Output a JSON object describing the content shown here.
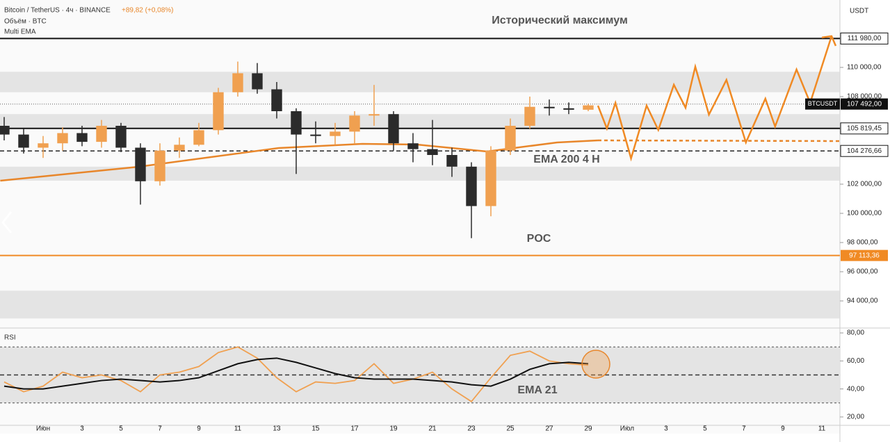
{
  "chart_data": {
    "type": "candlestick",
    "title": "Bitcoin / TetherUS · 4ч · BINANCE",
    "change": "+89,82 (+0,08%)",
    "indicators": [
      "Объём · BTC",
      "Multi EMA"
    ],
    "currency": "USDT",
    "symbol": "BTCUSDT",
    "up_color": "#f0a050",
    "down_color": "#2b2b2b",
    "xlim": [
      -2.214,
      40.93
    ],
    "xticks": [
      {
        "value": 0,
        "label": "Июн"
      },
      {
        "value": 2,
        "label": "3"
      },
      {
        "value": 4,
        "label": "5"
      },
      {
        "value": 6,
        "label": "7"
      },
      {
        "value": 8,
        "label": "9"
      },
      {
        "value": 10,
        "label": "11"
      },
      {
        "value": 12,
        "label": "13"
      },
      {
        "value": 14,
        "label": "15"
      },
      {
        "value": 16,
        "label": "17"
      },
      {
        "value": 18,
        "label": "19"
      },
      {
        "value": 20,
        "label": "21"
      },
      {
        "value": 22,
        "label": "23"
      },
      {
        "value": 24,
        "label": "25"
      },
      {
        "value": 26,
        "label": "27"
      },
      {
        "value": 28,
        "label": "29"
      },
      {
        "value": 30,
        "label": "Июл"
      },
      {
        "value": 32,
        "label": "3"
      },
      {
        "value": 34,
        "label": "5"
      },
      {
        "value": 36,
        "label": "7"
      },
      {
        "value": 38,
        "label": "9"
      },
      {
        "value": 40,
        "label": "11"
      }
    ],
    "ylim": [
      92238,
      114619
    ],
    "yticks": [
      {
        "value": 110000,
        "label": "110 000,00"
      },
      {
        "value": 108000,
        "label": "108 000,00"
      },
      {
        "value": 102000,
        "label": "102 000,00"
      },
      {
        "value": 100000,
        "label": "100 000,00"
      },
      {
        "value": 98000,
        "label": "98 000,00"
      },
      {
        "value": 96000,
        "label": "96 000,00"
      },
      {
        "value": 94000,
        "label": "94 000,00"
      }
    ],
    "x": [
      -2,
      -1,
      0,
      1,
      2,
      3,
      4,
      5,
      6,
      7,
      8,
      9,
      10,
      11,
      12,
      13,
      14,
      15,
      16,
      17,
      18,
      19,
      20,
      21,
      22,
      23,
      24,
      25,
      26,
      27,
      28
    ],
    "open": [
      106000,
      105400,
      104500,
      104800,
      105500,
      104900,
      106000,
      104500,
      102200,
      104300,
      104700,
      105700,
      108300,
      109600,
      108500,
      107000,
      105400,
      105300,
      105600,
      106700,
      106800,
      104800,
      104400,
      104000,
      103200,
      100500,
      104300,
      106000,
      107300,
      107200,
      107100
    ],
    "high": [
      106600,
      105800,
      105300,
      105900,
      106000,
      106400,
      106200,
      104800,
      104800,
      105200,
      106200,
      108600,
      110400,
      110300,
      109000,
      107200,
      106300,
      106200,
      107000,
      108800,
      107000,
      105500,
      106400,
      104500,
      103500,
      104600,
      106500,
      108000,
      107800,
      107600,
      107500
    ],
    "low": [
      105000,
      104100,
      103800,
      104300,
      104600,
      104500,
      104200,
      100600,
      101900,
      103800,
      104600,
      105400,
      108000,
      108200,
      106500,
      102700,
      104800,
      104700,
      104800,
      106000,
      104300,
      103500,
      103300,
      102500,
      98300,
      99800,
      104000,
      105800,
      106700,
      106800,
      107000
    ],
    "close": [
      105400,
      104500,
      104800,
      105500,
      104900,
      106000,
      104500,
      102200,
      104300,
      104700,
      105700,
      108300,
      109600,
      108500,
      107000,
      105400,
      105300,
      105600,
      106700,
      106800,
      104800,
      104400,
      104000,
      103200,
      100500,
      104300,
      106000,
      107300,
      107200,
      107100,
      107400
    ],
    "zones": [
      [
        108300,
        109700
      ],
      [
        105800,
        106800
      ],
      [
        102240,
        103200
      ],
      [
        92800,
        94700
      ]
    ],
    "levels": [
      {
        "value": 111980,
        "label": "111 980,00",
        "color": "#111111",
        "style": "solid"
      },
      {
        "value": 107492,
        "label": "107 492,00",
        "color": "#888888",
        "style": "dotted"
      },
      {
        "value": 105819.45,
        "label": "105 819,45",
        "color": "#111111",
        "style": "solid"
      },
      {
        "value": 104276.66,
        "label": "104 276,66",
        "color": "#111111",
        "style": "dashed"
      },
      {
        "value": 97113.36,
        "label": "97 113,36",
        "color": "#f08a24",
        "style": "solid"
      }
    ],
    "ema": {
      "name": "EMA 200 4 H",
      "color": "#e8862a",
      "x": [
        -2.2,
        4.9,
        12.1,
        16.4,
        19.2,
        22.8,
        26.4,
        28.5
      ],
      "values": [
        102238,
        103190,
        104476,
        104762,
        104714,
        104238,
        104857,
        105000
      ],
      "forecast_x": [
        28.5,
        40.93
      ],
      "forecast_values": [
        105000,
        104952
      ]
    },
    "projection": {
      "color": "#f08a24",
      "x": [
        28.5,
        28.96,
        29.4,
        30.2,
        31.0,
        31.6,
        32.4,
        33.0,
        33.5,
        34.2,
        35.1,
        36.1,
        37.1,
        37.6,
        38.7,
        39.4,
        40.5
      ],
      "values": [
        107381,
        105810,
        107571,
        103762,
        107381,
        105714,
        108810,
        107238,
        110048,
        106762,
        109143,
        104857,
        107857,
        105952,
        109857,
        107571,
        112143
      ]
    },
    "annotations": {
      "ath": "Исторический максимум",
      "poc": "POC"
    },
    "rsi": {
      "title": "RSI",
      "ylim": [
        16.5,
        83.5
      ],
      "yticks": [
        {
          "value": 80,
          "label": "80,00"
        },
        {
          "value": 60,
          "label": "60,00"
        },
        {
          "value": 40,
          "label": "40,00"
        },
        {
          "value": 20,
          "label": "20,00"
        }
      ],
      "band": [
        30,
        70
      ],
      "levels": [
        70,
        50,
        30
      ],
      "color": "#f0a050",
      "values": [
        45,
        38,
        42,
        52,
        48,
        50,
        46,
        38,
        50,
        52,
        56,
        66,
        70,
        62,
        48,
        38,
        45,
        44,
        46,
        58,
        44,
        47,
        52,
        40,
        31,
        48,
        64,
        67,
        60,
        58,
        57
      ],
      "ema": {
        "name": "EMA 21",
        "color": "#111111",
        "values": [
          42,
          40,
          40,
          42,
          44,
          46,
          47,
          46,
          45,
          46,
          48,
          53,
          58,
          61,
          62,
          59,
          55,
          51,
          48,
          47,
          47,
          47,
          46,
          45,
          43,
          42,
          47,
          54,
          58,
          59,
          58
        ]
      }
    }
  }
}
